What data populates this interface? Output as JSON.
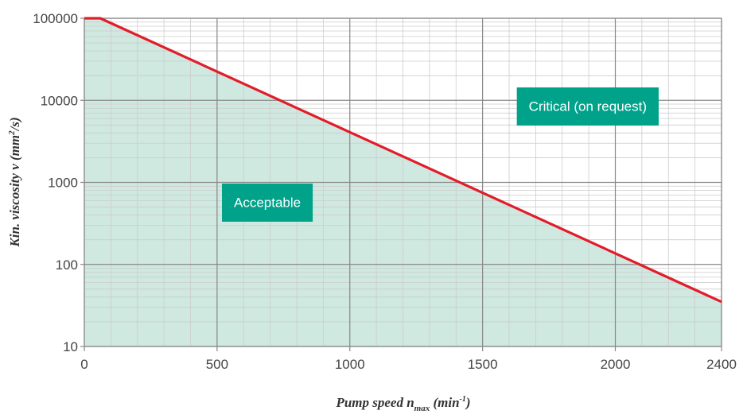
{
  "chart_data": {
    "type": "line",
    "title": "",
    "x_axis": {
      "label_main": "Pump speed n",
      "label_sub": "max",
      "label_unit_open": "(min",
      "label_unit_sup": "-1",
      "label_unit_close": ")",
      "range": [
        0,
        2400
      ],
      "ticks": [
        0,
        500,
        1000,
        1500,
        2000,
        2400
      ],
      "tick_labels": [
        "0",
        "500",
        "1000",
        "1500",
        "2000",
        "2400"
      ],
      "minor_step": 100
    },
    "y_axis": {
      "label_main": "Kin. viscosity ν (mm",
      "label_sup": "2",
      "label_end": "/s)",
      "scale": "log",
      "range": [
        10,
        100000
      ],
      "ticks": [
        10,
        100,
        1000,
        10000,
        100000
      ],
      "tick_labels": [
        "10",
        "100",
        "1000",
        "10000",
        "100000"
      ]
    },
    "grid": true,
    "series": [
      {
        "color": "#e11d2a",
        "points": [
          [
            0,
            100000
          ],
          [
            60,
            100000
          ],
          [
            2400,
            35
          ]
        ]
      }
    ],
    "regions": [
      {
        "label": "Acceptable",
        "fill": "#cfe8e0",
        "label_bg": "#00a38a",
        "label_at": [
          1200,
          6000
        ]
      },
      {
        "label": "Critical (on request)",
        "fill": "#ffffff",
        "label_bg": "#00a38a",
        "label_at": [
          2000,
          145
        ]
      }
    ],
    "colors": {
      "major_grid": "#888888",
      "minor_grid": "#cccccc",
      "acceptable_fill": "#cfe8e0",
      "label_bg": "#00a38a",
      "line": "#e11d2a"
    }
  }
}
